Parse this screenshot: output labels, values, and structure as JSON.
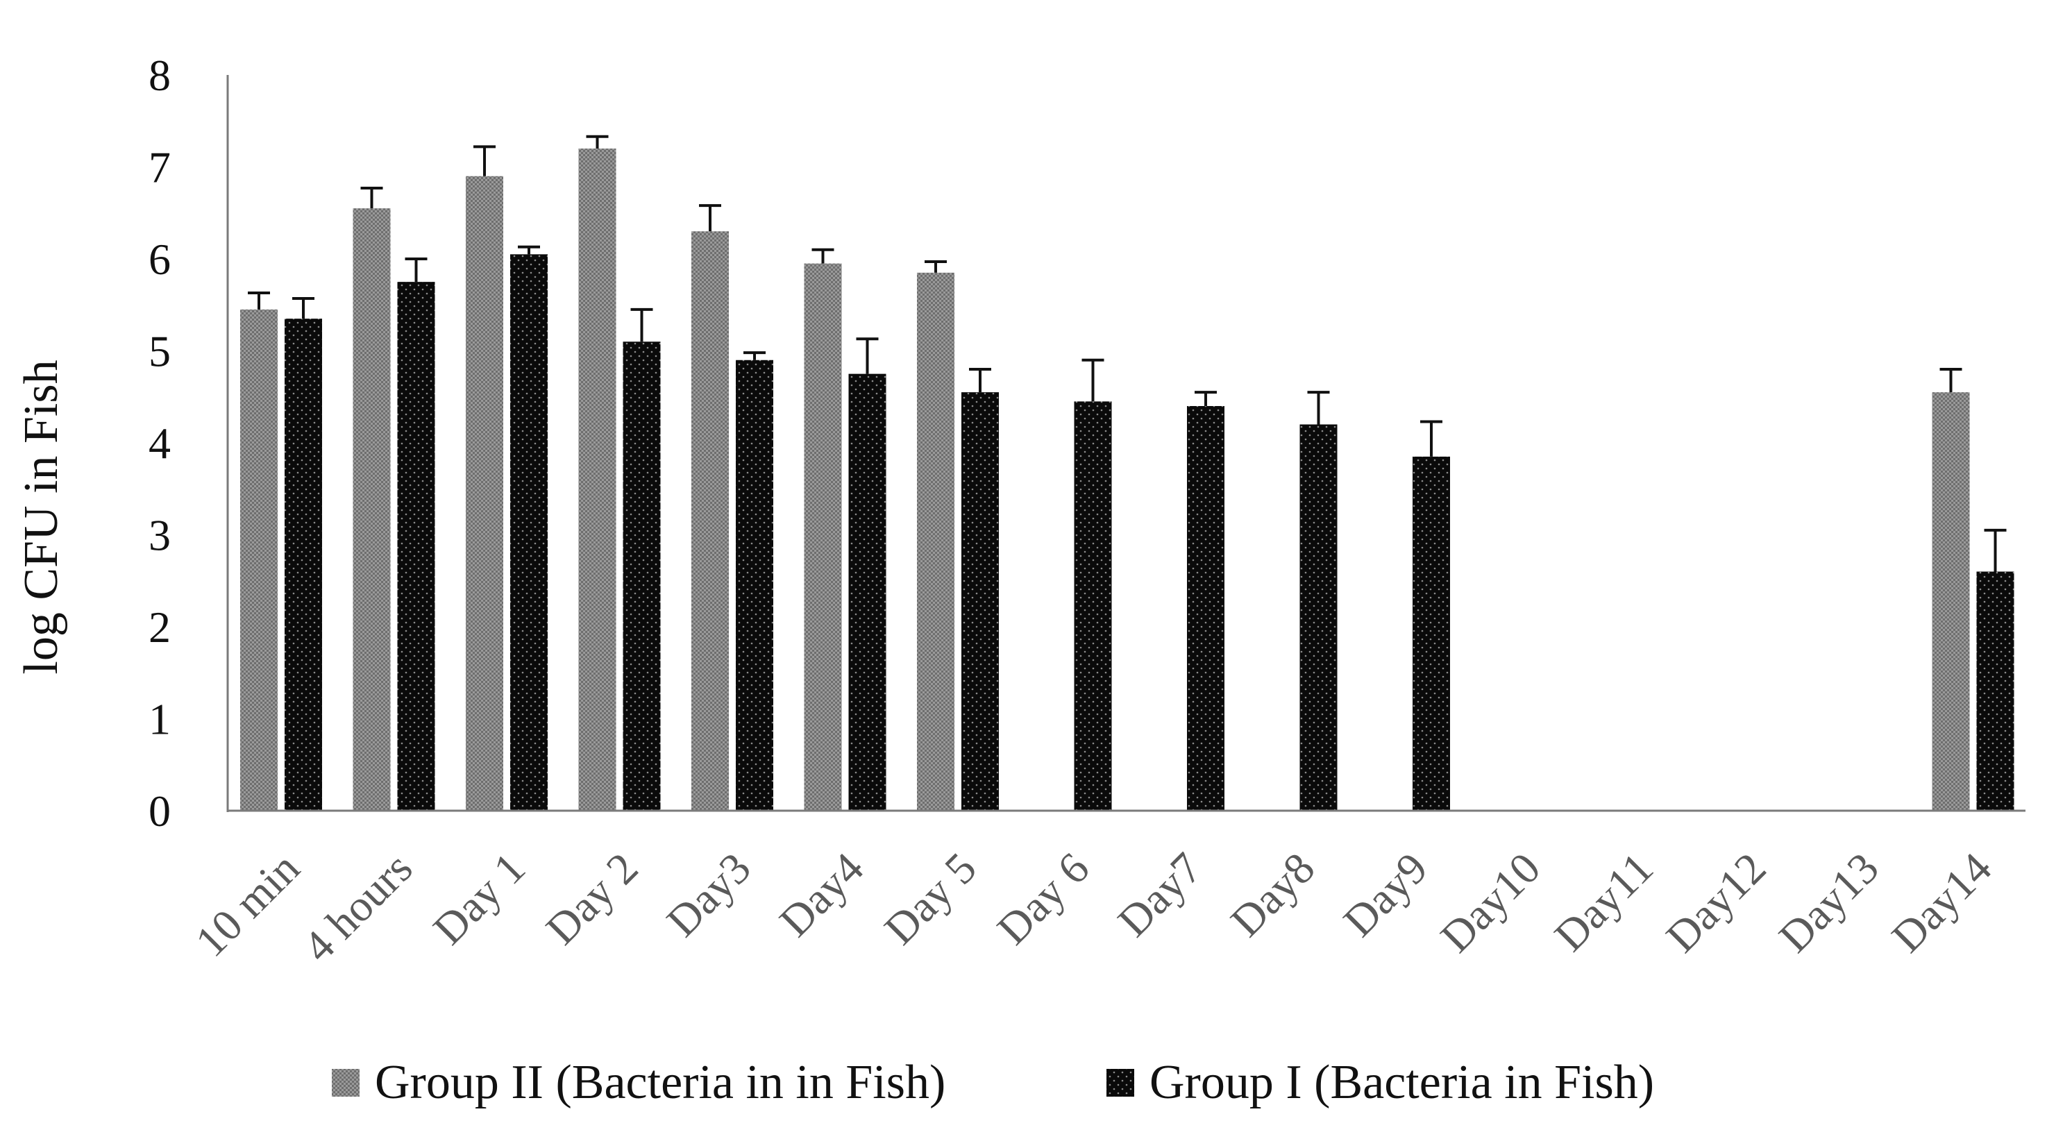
{
  "chart_data": {
    "type": "bar",
    "title": "",
    "xlabel": "",
    "ylabel": "log CFU in Fish",
    "ylim": [
      0,
      8
    ],
    "yticks": [
      0,
      1,
      2,
      3,
      4,
      5,
      6,
      7,
      8
    ],
    "grid": false,
    "legend_position": "bottom",
    "categories": [
      "10 min",
      "4 hours",
      "Day 1",
      "Day 2",
      "Day3",
      "Day4",
      "Day 5",
      "Day 6",
      "Day7",
      "Day8",
      "Day9",
      "Day10",
      "Day11",
      "Day12",
      "Day13",
      "Day14"
    ],
    "series": [
      {
        "name": "Group II (Bacteria in in Fish)",
        "color": "#8a8a8a",
        "values": [
          5.45,
          6.55,
          6.9,
          7.2,
          6.3,
          5.95,
          5.85,
          null,
          null,
          null,
          null,
          null,
          null,
          null,
          null,
          4.55
        ],
        "errors": [
          0.18,
          0.22,
          0.32,
          0.13,
          0.28,
          0.15,
          0.12,
          null,
          null,
          null,
          null,
          null,
          null,
          null,
          null,
          0.25
        ]
      },
      {
        "name": "Group I (Bacteria in Fish)",
        "color": "#111111",
        "values": [
          5.35,
          5.75,
          6.05,
          5.1,
          4.9,
          4.75,
          4.55,
          4.45,
          4.4,
          4.2,
          3.85,
          null,
          null,
          null,
          null,
          2.6
        ],
        "errors": [
          0.22,
          0.25,
          0.08,
          0.35,
          0.08,
          0.38,
          0.25,
          0.45,
          0.15,
          0.35,
          0.38,
          null,
          null,
          null,
          null,
          0.45
        ]
      }
    ]
  }
}
